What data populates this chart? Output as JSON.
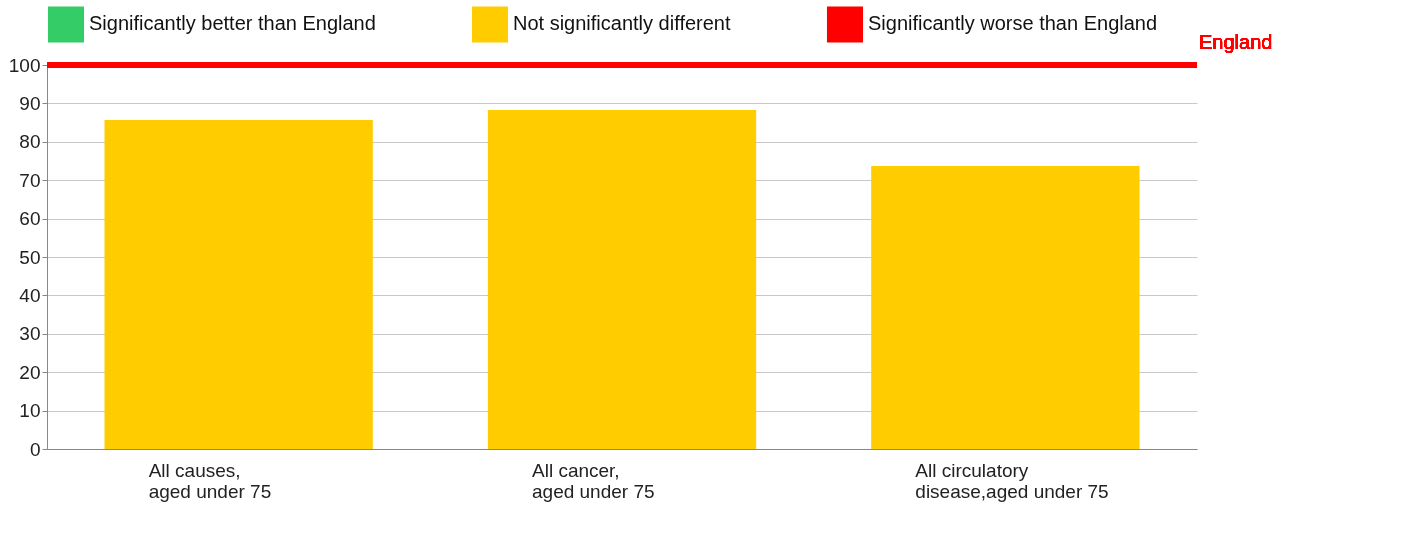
{
  "chart_data": {
    "type": "bar",
    "categories": [
      "All causes,\naged under 75",
      "All cancer,\naged under 75",
      "All circulatory\ndisease,aged under 75"
    ],
    "series": [
      {
        "name": "Significantly better than England",
        "color": "#33cc66",
        "values": [
          null,
          null,
          null
        ]
      },
      {
        "name": "Not significantly different",
        "color": "#ffcc00",
        "values": [
          85.7,
          88.3,
          73.7
        ]
      },
      {
        "name": "Significantly worse than England",
        "color": "#ff0000",
        "values": [
          null,
          null,
          null
        ]
      }
    ],
    "stacked": true,
    "ylim": [
      0,
      100
    ],
    "yticks": [
      0,
      10,
      20,
      30,
      40,
      50,
      60,
      70,
      80,
      90,
      100
    ],
    "grid": "y",
    "legend": "top",
    "ref_lines": [
      {
        "axis": "y",
        "value": 100,
        "label": "England",
        "color": "#ff0000"
      }
    ]
  }
}
